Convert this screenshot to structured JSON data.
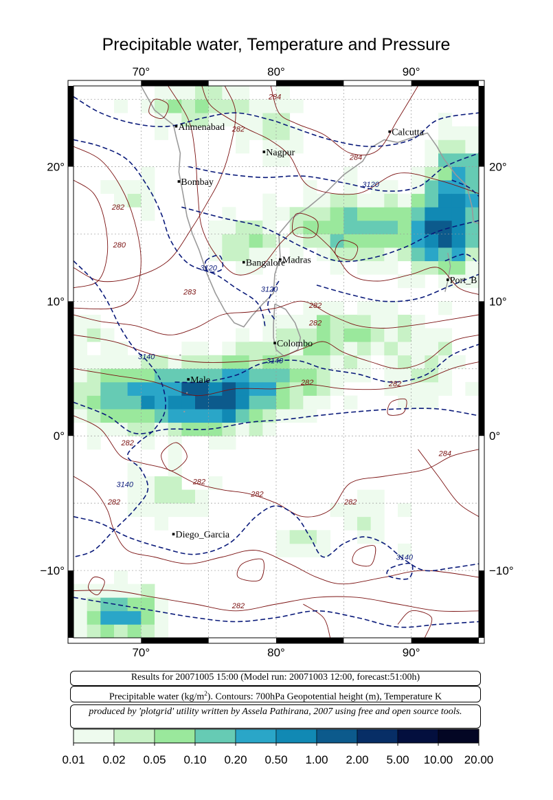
{
  "title": "Precipitable water, Temperature and Pressure",
  "map": {
    "lon_range": [
      65,
      95
    ],
    "lat_range": [
      -15,
      26
    ],
    "top_ticks": [
      "70°",
      "80°",
      "90°"
    ],
    "bottom_ticks": [
      "70°",
      "80°",
      "90°"
    ],
    "left_ticks": [
      "20°",
      "10°",
      "0°",
      "−10°"
    ],
    "right_ticks": [
      "20°",
      "10°",
      "0°",
      "−10°"
    ],
    "cities": [
      {
        "name": "Ahmenabad",
        "lon": 72.6,
        "lat": 23.0
      },
      {
        "name": "Calcutta",
        "lon": 88.4,
        "lat": 22.6
      },
      {
        "name": "Nagpur",
        "lon": 79.1,
        "lat": 21.1
      },
      {
        "name": "Bombay",
        "lon": 72.8,
        "lat": 18.9
      },
      {
        "name": "Madras",
        "lon": 80.3,
        "lat": 13.1
      },
      {
        "name": "Bangalore",
        "lon": 77.6,
        "lat": 12.9
      },
      {
        "name": "Port_B",
        "lon": 92.7,
        "lat": 11.6
      },
      {
        "name": "Colombo",
        "lon": 79.9,
        "lat": 6.9
      },
      {
        "name": "Male",
        "lon": 73.5,
        "lat": 4.2
      },
      {
        "name": "Diego_Garcia",
        "lon": 72.4,
        "lat": -7.3
      }
    ],
    "temperature_labels": [
      {
        "text": "284",
        "lon": 79.9,
        "lat": 25.0
      },
      {
        "text": "282",
        "lon": 77.2,
        "lat": 22.6
      },
      {
        "text": "284",
        "lon": 85.9,
        "lat": 20.5
      },
      {
        "text": "280",
        "lon": 68.4,
        "lat": 14.0
      },
      {
        "text": "282",
        "lon": 68.3,
        "lat": 16.8
      },
      {
        "text": "283",
        "lon": 73.6,
        "lat": 10.5
      },
      {
        "text": "282",
        "lon": 82.9,
        "lat": 9.5
      },
      {
        "text": "282",
        "lon": 82.9,
        "lat": 8.2
      },
      {
        "text": "282",
        "lon": 82.3,
        "lat": 3.8
      },
      {
        "text": "282",
        "lon": 88.8,
        "lat": 3.7
      },
      {
        "text": "282",
        "lon": 69.0,
        "lat": -0.7
      },
      {
        "text": "284",
        "lon": 92.5,
        "lat": -1.5
      },
      {
        "text": "282",
        "lon": 74.3,
        "lat": -3.6
      },
      {
        "text": "282",
        "lon": 68.0,
        "lat": -5.1
      },
      {
        "text": "282",
        "lon": 78.6,
        "lat": -4.5
      },
      {
        "text": "282",
        "lon": 85.5,
        "lat": -5.1
      },
      {
        "text": "282",
        "lon": 77.2,
        "lat": -12.8
      }
    ],
    "pressure_labels": [
      {
        "text": "3120",
        "lon": 87.0,
        "lat": 18.5
      },
      {
        "text": "3120",
        "lon": 75.0,
        "lat": 12.3
      },
      {
        "text": "3120",
        "lon": 79.5,
        "lat": 10.7
      },
      {
        "text": "3140",
        "lon": 70.4,
        "lat": 5.7
      },
      {
        "text": "3140",
        "lon": 79.9,
        "lat": 5.4
      },
      {
        "text": "3140",
        "lon": 68.8,
        "lat": -3.8
      },
      {
        "text": "3140",
        "lon": 89.5,
        "lat": -9.2
      }
    ]
  },
  "info": {
    "line1": "Results for 20071005 15:00 (Model run: 20071003 12:00, forecast:51:00h)",
    "line2_prefix": "Precipitable water (kg/m",
    "line2_sup": "2",
    "line2_suffix": ").  Contours: 700hPa Geopotential height (m), Temperature K",
    "line3": "produced by 'plotgrid' utility written by Assela Pathirana, 2007 using free and open source tools."
  },
  "colorbar": {
    "labels": [
      "0.01",
      "0.02",
      "0.05",
      "0.10",
      "0.20",
      "0.50",
      "1.00",
      "2.00",
      "5.00",
      "10.00",
      "20.00"
    ],
    "colors": [
      "#eefbee",
      "#c8f2c6",
      "#9ae89c",
      "#66cbb4",
      "#2aa6c8",
      "#1189b4",
      "#0c5a8c",
      "#072e66",
      "#030f3e",
      "#030624"
    ]
  },
  "colors": {
    "temperature_contour": "#7a1010",
    "pressure_contour": "#0a1a7a",
    "coastline": "#9a9a9a"
  }
}
